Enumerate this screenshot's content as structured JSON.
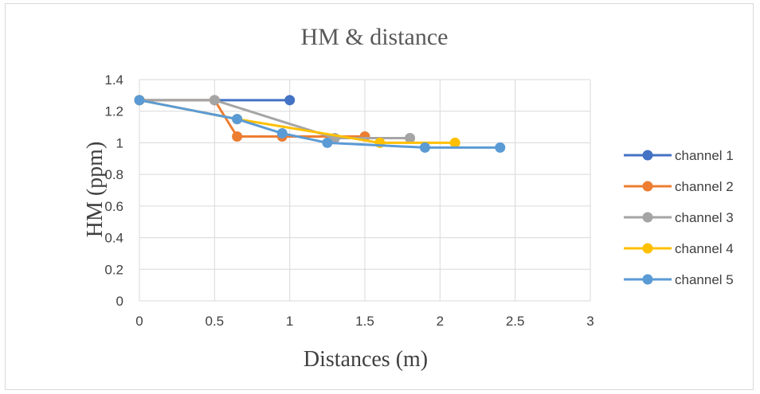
{
  "chart_data": {
    "type": "scatter",
    "title": "HM & distance",
    "xlabel": "Distances (m)",
    "ylabel": "HM (ppm)",
    "xlim": [
      0,
      3
    ],
    "ylim": [
      0,
      1.4
    ],
    "xticks": [
      "0",
      "0.5",
      "1",
      "1.5",
      "2",
      "2.5",
      "3"
    ],
    "yticks": [
      "0",
      "0.2",
      "0.4",
      "0.6",
      "0.8",
      "1",
      "1.2",
      "1.4"
    ],
    "grid": true,
    "legend_position": "right",
    "series": [
      {
        "name": "channel 1",
        "color": "#4472C4",
        "x": [
          0,
          1
        ],
        "y": [
          1.27,
          1.27
        ]
      },
      {
        "name": "channel 2",
        "color": "#ED7D31",
        "x": [
          0,
          0.5,
          0.65,
          0.95,
          1.5
        ],
        "y": [
          1.27,
          1.27,
          1.04,
          1.04,
          1.04
        ]
      },
      {
        "name": "channel 3",
        "color": "#A5A5A5",
        "x": [
          0,
          0.5,
          1.3,
          1.8
        ],
        "y": [
          1.27,
          1.27,
          1.03,
          1.03
        ]
      },
      {
        "name": "channel 4",
        "color": "#FFC000",
        "x": [
          0,
          0.65,
          1.6,
          2.1
        ],
        "y": [
          1.27,
          1.15,
          1.0,
          1.0
        ]
      },
      {
        "name": "channel 5",
        "color": "#5B9BD5",
        "x": [
          0,
          0.65,
          0.95,
          1.25,
          1.9,
          2.4
        ],
        "y": [
          1.27,
          1.15,
          1.06,
          1.0,
          0.97,
          0.97
        ]
      }
    ]
  }
}
